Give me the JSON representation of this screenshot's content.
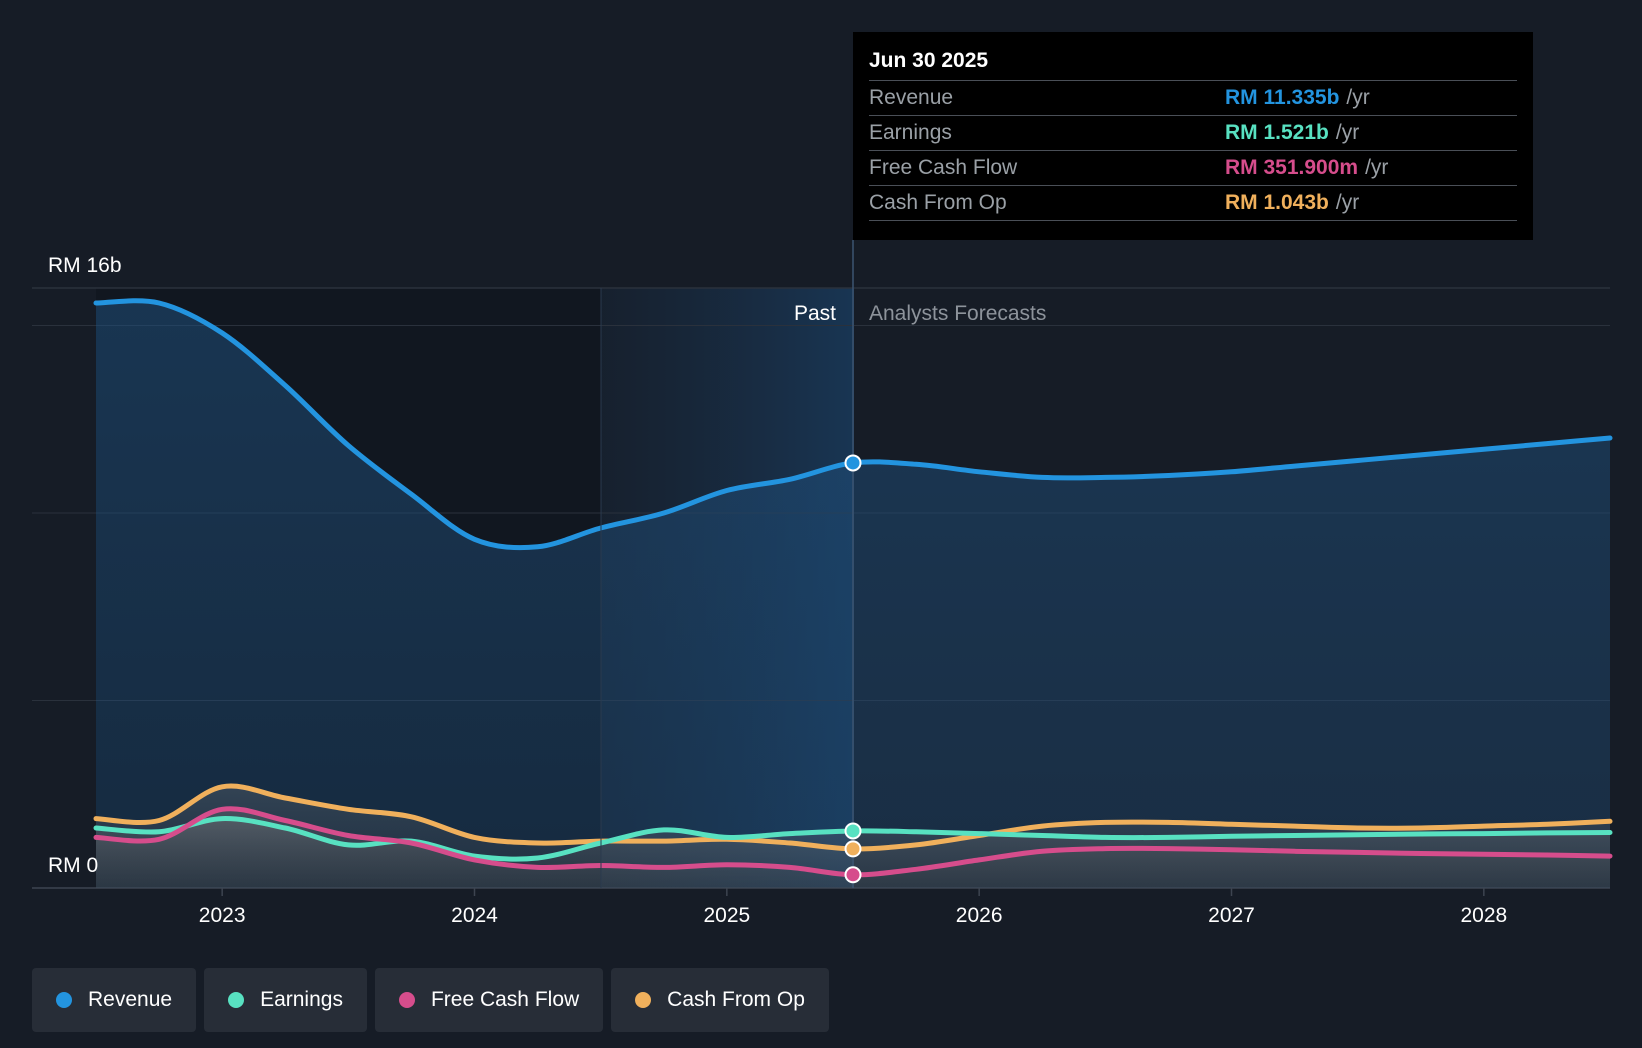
{
  "chart_data": {
    "type": "area",
    "title": "",
    "y_axis": {
      "top_label": "RM 16b",
      "bottom_label": "RM 0",
      "ylim": [
        0,
        16
      ]
    },
    "x_axis": {
      "tick_labels": [
        "2023",
        "2024",
        "2025",
        "2026",
        "2027",
        "2028"
      ],
      "xlim": [
        2022.5,
        2028.5
      ]
    },
    "divider": {
      "x": 2025.5,
      "past_label": "Past",
      "forecast_label": "Analysts Forecasts"
    },
    "series": [
      {
        "name": "Revenue",
        "color": "#2394df",
        "x": [
          2022.5,
          2022.75,
          2023.0,
          2023.25,
          2023.5,
          2023.75,
          2024.0,
          2024.25,
          2024.5,
          2024.75,
          2025.0,
          2025.25,
          2025.5,
          2025.75,
          2026.0,
          2026.25,
          2026.5,
          2026.75,
          2027.0,
          2027.25,
          2027.5,
          2027.75,
          2028.0,
          2028.25,
          2028.5
        ],
        "values": [
          15.6,
          15.6,
          14.8,
          13.4,
          11.8,
          10.5,
          9.3,
          9.1,
          9.6,
          10.0,
          10.6,
          10.9,
          11.335,
          11.3,
          11.1,
          10.95,
          10.95,
          11.0,
          11.1,
          11.25,
          11.4,
          11.55,
          11.7,
          11.85,
          12.0
        ]
      },
      {
        "name": "Earnings",
        "color": "#58e1c1",
        "x": [
          2022.5,
          2022.75,
          2023.0,
          2023.25,
          2023.5,
          2023.75,
          2024.0,
          2024.25,
          2024.5,
          2024.75,
          2025.0,
          2025.25,
          2025.5,
          2025.75,
          2026.0,
          2026.25,
          2026.5,
          2026.75,
          2027.0,
          2027.25,
          2027.5,
          2027.75,
          2028.0,
          2028.25,
          2028.5
        ],
        "values": [
          1.6,
          1.5,
          1.85,
          1.6,
          1.15,
          1.25,
          0.85,
          0.8,
          1.2,
          1.55,
          1.35,
          1.45,
          1.521,
          1.5,
          1.45,
          1.4,
          1.35,
          1.35,
          1.38,
          1.4,
          1.42,
          1.44,
          1.45,
          1.47,
          1.48
        ]
      },
      {
        "name": "Free Cash Flow",
        "color": "#d64d8c",
        "x": [
          2022.5,
          2022.75,
          2023.0,
          2023.25,
          2023.5,
          2023.75,
          2024.0,
          2024.25,
          2024.5,
          2024.75,
          2025.0,
          2025.25,
          2025.5,
          2025.75,
          2026.0,
          2026.25,
          2026.5,
          2026.75,
          2027.0,
          2027.25,
          2027.5,
          2027.75,
          2028.0,
          2028.25,
          2028.5
        ],
        "values": [
          1.35,
          1.3,
          2.1,
          1.8,
          1.4,
          1.2,
          0.75,
          0.55,
          0.6,
          0.55,
          0.62,
          0.55,
          0.352,
          0.5,
          0.75,
          0.98,
          1.05,
          1.05,
          1.02,
          0.98,
          0.95,
          0.92,
          0.9,
          0.88,
          0.85
        ]
      },
      {
        "name": "Cash From Op",
        "color": "#f0b05c",
        "x": [
          2022.5,
          2022.75,
          2023.0,
          2023.25,
          2023.5,
          2023.75,
          2024.0,
          2024.25,
          2024.5,
          2024.75,
          2025.0,
          2025.25,
          2025.5,
          2025.75,
          2026.0,
          2026.25,
          2026.5,
          2026.75,
          2027.0,
          2027.25,
          2027.5,
          2027.75,
          2028.0,
          2028.25,
          2028.5
        ],
        "values": [
          1.85,
          1.8,
          2.7,
          2.4,
          2.1,
          1.9,
          1.35,
          1.2,
          1.25,
          1.25,
          1.3,
          1.2,
          1.043,
          1.15,
          1.4,
          1.65,
          1.75,
          1.75,
          1.7,
          1.65,
          1.6,
          1.6,
          1.65,
          1.7,
          1.78
        ]
      }
    ]
  },
  "tooltip": {
    "date": "Jun 30 2025",
    "rows": [
      {
        "label": "Revenue",
        "value": "RM 11.335b",
        "unit": "/yr",
        "color": "#2394df"
      },
      {
        "label": "Earnings",
        "value": "RM 1.521b",
        "unit": "/yr",
        "color": "#58e1c1"
      },
      {
        "label": "Free Cash Flow",
        "value": "RM 351.900m",
        "unit": "/yr",
        "color": "#d64d8c"
      },
      {
        "label": "Cash From Op",
        "value": "RM 1.043b",
        "unit": "/yr",
        "color": "#f0b05c"
      }
    ]
  },
  "legend": [
    {
      "label": "Revenue",
      "color": "#2394df"
    },
    {
      "label": "Earnings",
      "color": "#58e1c1"
    },
    {
      "label": "Free Cash Flow",
      "color": "#d64d8c"
    },
    {
      "label": "Cash From Op",
      "color": "#f0b05c"
    }
  ]
}
